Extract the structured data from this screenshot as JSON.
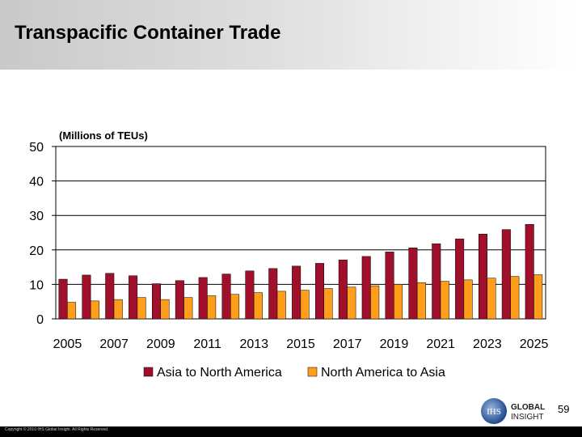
{
  "slide": {
    "title": "Transpacific Container Trade",
    "page_number": "59",
    "copyright": "Copyright © 2010 IHS Global Insight. All Rights Reserved.",
    "logo_text": [
      "GLOBAL",
      "INSIGHT"
    ],
    "logo_badge": "IHS"
  },
  "chart_data": {
    "type": "bar",
    "title": "",
    "ylabel": "(Millions of TEUs)",
    "xlabel": "",
    "ylim": [
      0,
      50
    ],
    "yticks": [
      0,
      10,
      20,
      30,
      40,
      50
    ],
    "grid": true,
    "legend_position": "bottom",
    "categories": [
      "2005",
      "2006",
      "2007",
      "2008",
      "2009",
      "2010",
      "2011",
      "2012",
      "2013",
      "2014",
      "2015",
      "2016",
      "2017",
      "2018",
      "2019",
      "2020",
      "2021",
      "2022",
      "2023",
      "2024",
      "2025"
    ],
    "xtick_labels": [
      "2005",
      "2007",
      "2009",
      "2011",
      "2013",
      "2015",
      "2017",
      "2019",
      "2021",
      "2023",
      "2025"
    ],
    "series": [
      {
        "name": "Asia to North America",
        "color": "#a0102a",
        "values": [
          11.5,
          12.7,
          13.2,
          12.5,
          10.2,
          11.1,
          12.0,
          13.0,
          13.9,
          14.6,
          15.3,
          16.1,
          17.1,
          18.1,
          19.4,
          20.6,
          21.8,
          23.2,
          24.6,
          25.9,
          27.4
        ]
      },
      {
        "name": "North America to Asia",
        "color": "#ff9e1b",
        "values": [
          4.8,
          5.2,
          5.6,
          6.2,
          5.6,
          6.2,
          6.7,
          7.1,
          7.6,
          8.0,
          8.3,
          8.8,
          9.2,
          9.6,
          10.0,
          10.5,
          10.9,
          11.3,
          11.8,
          12.3,
          12.8
        ]
      }
    ]
  }
}
